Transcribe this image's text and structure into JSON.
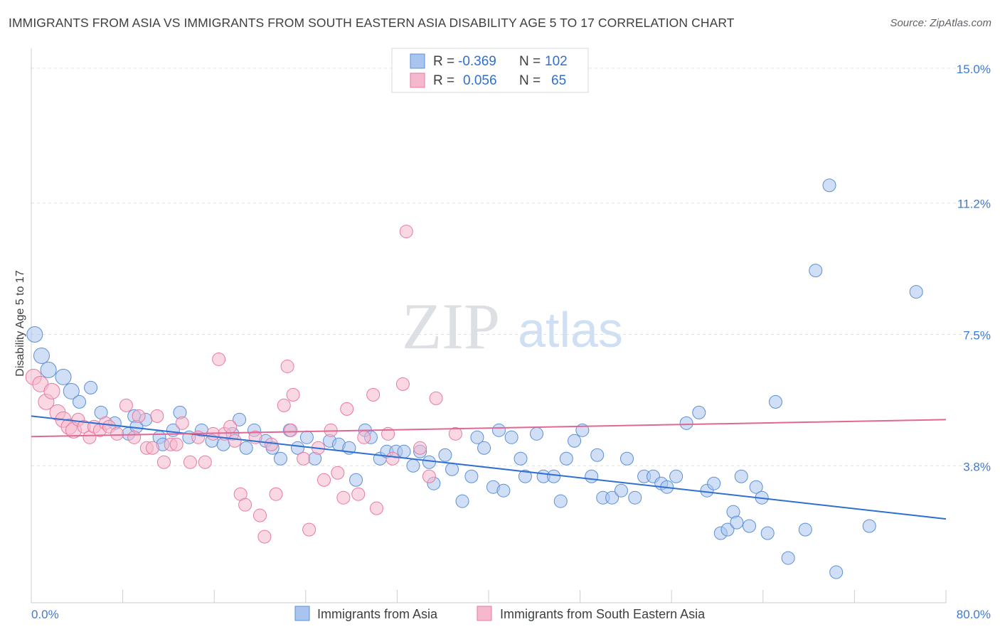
{
  "title": "IMMIGRANTS FROM ASIA VS IMMIGRANTS FROM SOUTH EASTERN ASIA DISABILITY AGE 5 TO 17 CORRELATION CHART",
  "source": "Source: ZipAtlas.com",
  "watermark": {
    "part1": "ZIP",
    "part2": "atlas"
  },
  "colors": {
    "blue": "#5b8fd9",
    "blue_fill": "#a9c5ef",
    "blue_line": "#2f6fd1",
    "pink": "#e87aa0",
    "pink_fill": "#f6b8cc",
    "pink_line": "#e06894",
    "axis_text": "#3d7ad6",
    "grid": "#dde1e6"
  },
  "legend": {
    "rows": [
      {
        "r_label": "R =",
        "r_value": "-0.369",
        "n_label": "N =",
        "n_value": "102"
      },
      {
        "r_label": "R =",
        "r_value": "0.056",
        "n_label": "N =",
        "n_value": "65"
      }
    ]
  },
  "chart_data": {
    "type": "scatter",
    "ylabel": "Disability Age 5 to 17",
    "xlim": [
      0,
      80
    ],
    "ylim": [
      0,
      15.5
    ],
    "x_tick_labels": [
      {
        "value": 0,
        "label": "0.0%"
      },
      {
        "value": 80,
        "label": "80.0%"
      }
    ],
    "y_tick_labels": [
      {
        "value": 3.8,
        "label": "3.8%"
      },
      {
        "value": 7.5,
        "label": "7.5%"
      },
      {
        "value": 11.2,
        "label": "11.2%"
      },
      {
        "value": 15.0,
        "label": "15.0%"
      }
    ],
    "grid": true,
    "legend_position": "top-center",
    "series": [
      {
        "name": "Immigrants from Asia",
        "color": "#5b8fd9",
        "trend": {
          "x": [
            0,
            80
          ],
          "y": [
            5.2,
            2.3
          ]
        },
        "points": [
          [
            0.3,
            7.5
          ],
          [
            0.9,
            6.9
          ],
          [
            1.5,
            6.5
          ],
          [
            2.8,
            6.3
          ],
          [
            3.5,
            5.9
          ],
          [
            4.2,
            5.6
          ],
          [
            5.2,
            6.0
          ],
          [
            6.1,
            5.3
          ],
          [
            7.3,
            5.0
          ],
          [
            9.0,
            5.2
          ],
          [
            8.5,
            4.7
          ],
          [
            9.2,
            4.9
          ],
          [
            10.0,
            5.1
          ],
          [
            11.2,
            4.6
          ],
          [
            12.4,
            4.8
          ],
          [
            13.0,
            5.3
          ],
          [
            13.8,
            4.6
          ],
          [
            11.5,
            4.4
          ],
          [
            14.9,
            4.8
          ],
          [
            15.8,
            4.5
          ],
          [
            16.8,
            4.4
          ],
          [
            17.6,
            4.7
          ],
          [
            18.2,
            5.1
          ],
          [
            18.8,
            4.3
          ],
          [
            19.5,
            4.8
          ],
          [
            20.5,
            4.5
          ],
          [
            21.1,
            4.3
          ],
          [
            21.8,
            4.0
          ],
          [
            22.6,
            4.8
          ],
          [
            23.3,
            4.3
          ],
          [
            24.1,
            4.6
          ],
          [
            24.8,
            4.0
          ],
          [
            26.1,
            4.5
          ],
          [
            26.9,
            4.4
          ],
          [
            27.8,
            4.3
          ],
          [
            28.4,
            3.4
          ],
          [
            29.2,
            4.8
          ],
          [
            29.7,
            4.6
          ],
          [
            30.5,
            4.0
          ],
          [
            31.1,
            4.2
          ],
          [
            31.9,
            4.2
          ],
          [
            32.6,
            4.2
          ],
          [
            33.4,
            3.8
          ],
          [
            34.0,
            4.2
          ],
          [
            34.8,
            3.9
          ],
          [
            35.2,
            3.3
          ],
          [
            36.2,
            4.1
          ],
          [
            36.8,
            3.7
          ],
          [
            37.7,
            2.8
          ],
          [
            38.5,
            3.5
          ],
          [
            39.0,
            4.6
          ],
          [
            39.6,
            4.3
          ],
          [
            40.4,
            3.2
          ],
          [
            40.9,
            4.8
          ],
          [
            41.3,
            3.1
          ],
          [
            42.0,
            4.6
          ],
          [
            42.8,
            4.0
          ],
          [
            43.2,
            3.5
          ],
          [
            44.2,
            4.7
          ],
          [
            44.8,
            3.5
          ],
          [
            45.7,
            3.5
          ],
          [
            46.3,
            2.8
          ],
          [
            46.8,
            4.0
          ],
          [
            47.5,
            4.5
          ],
          [
            48.2,
            4.8
          ],
          [
            49.0,
            3.5
          ],
          [
            49.5,
            4.1
          ],
          [
            50.0,
            2.9
          ],
          [
            50.8,
            2.9
          ],
          [
            51.6,
            3.1
          ],
          [
            52.1,
            4.0
          ],
          [
            52.8,
            2.9
          ],
          [
            53.6,
            3.5
          ],
          [
            54.4,
            3.5
          ],
          [
            55.1,
            3.3
          ],
          [
            55.6,
            3.2
          ],
          [
            56.4,
            3.5
          ],
          [
            57.3,
            5.0
          ],
          [
            58.4,
            5.3
          ],
          [
            59.1,
            3.1
          ],
          [
            59.7,
            3.3
          ],
          [
            60.3,
            1.9
          ],
          [
            60.9,
            2.0
          ],
          [
            61.4,
            2.5
          ],
          [
            61.7,
            2.2
          ],
          [
            62.1,
            3.5
          ],
          [
            62.8,
            2.1
          ],
          [
            63.4,
            3.2
          ],
          [
            63.9,
            2.9
          ],
          [
            64.4,
            1.9
          ],
          [
            65.1,
            5.6
          ],
          [
            66.2,
            1.2
          ],
          [
            67.7,
            2.0
          ],
          [
            68.6,
            9.3
          ],
          [
            69.8,
            11.7
          ],
          [
            70.4,
            0.8
          ],
          [
            73.3,
            2.1
          ],
          [
            77.4,
            8.7
          ]
        ]
      },
      {
        "name": "Immigrants from South Eastern Asia",
        "color": "#e87aa0",
        "trend": {
          "x": [
            0,
            80
          ],
          "y": [
            4.62,
            5.1
          ]
        },
        "points": [
          [
            0.2,
            6.3
          ],
          [
            0.8,
            6.1
          ],
          [
            1.3,
            5.6
          ],
          [
            1.8,
            5.9
          ],
          [
            2.3,
            5.3
          ],
          [
            2.8,
            5.1
          ],
          [
            3.3,
            4.9
          ],
          [
            3.7,
            4.8
          ],
          [
            4.1,
            5.1
          ],
          [
            4.6,
            4.9
          ],
          [
            5.1,
            4.6
          ],
          [
            5.5,
            4.9
          ],
          [
            6.0,
            4.8
          ],
          [
            6.5,
            5.0
          ],
          [
            6.8,
            4.9
          ],
          [
            7.5,
            4.7
          ],
          [
            8.3,
            5.5
          ],
          [
            9.0,
            4.6
          ],
          [
            9.4,
            5.2
          ],
          [
            10.1,
            4.3
          ],
          [
            10.6,
            4.3
          ],
          [
            11.0,
            5.2
          ],
          [
            11.6,
            3.9
          ],
          [
            12.2,
            4.4
          ],
          [
            12.7,
            4.4
          ],
          [
            13.2,
            5.0
          ],
          [
            13.9,
            3.9
          ],
          [
            14.6,
            4.6
          ],
          [
            15.2,
            3.9
          ],
          [
            15.9,
            4.7
          ],
          [
            16.4,
            6.8
          ],
          [
            16.9,
            4.7
          ],
          [
            17.4,
            4.9
          ],
          [
            17.8,
            4.5
          ],
          [
            18.3,
            3.0
          ],
          [
            18.7,
            2.7
          ],
          [
            19.6,
            4.6
          ],
          [
            20.0,
            2.4
          ],
          [
            20.4,
            1.8
          ],
          [
            21.0,
            4.4
          ],
          [
            21.4,
            3.0
          ],
          [
            22.1,
            5.5
          ],
          [
            22.4,
            6.6
          ],
          [
            22.7,
            4.8
          ],
          [
            22.9,
            5.8
          ],
          [
            23.8,
            4.0
          ],
          [
            24.3,
            2.0
          ],
          [
            25.1,
            4.3
          ],
          [
            25.6,
            3.4
          ],
          [
            26.2,
            4.8
          ],
          [
            26.8,
            3.6
          ],
          [
            27.3,
            2.9
          ],
          [
            27.6,
            5.4
          ],
          [
            28.6,
            3.0
          ],
          [
            29.1,
            4.6
          ],
          [
            29.9,
            5.8
          ],
          [
            30.2,
            2.6
          ],
          [
            31.2,
            4.7
          ],
          [
            31.6,
            4.0
          ],
          [
            32.5,
            6.1
          ],
          [
            32.8,
            10.4
          ],
          [
            34.0,
            4.3
          ],
          [
            34.8,
            3.5
          ],
          [
            35.4,
            5.7
          ],
          [
            37.1,
            4.7
          ]
        ]
      }
    ]
  }
}
